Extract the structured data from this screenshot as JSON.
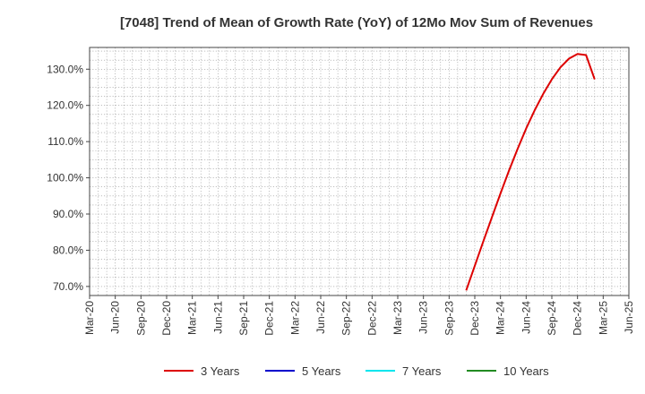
{
  "chart_data": {
    "type": "line",
    "title": "[7048]  Trend of Mean of Growth Rate (YoY) of 12Mo Mov Sum of Revenues",
    "xlabel": "",
    "ylabel": "",
    "ylim": [
      67.5,
      136.0
    ],
    "y_ticks": [
      70.0,
      80.0,
      90.0,
      100.0,
      110.0,
      120.0,
      130.0
    ],
    "y_tick_labels": [
      "70.0%",
      "80.0%",
      "90.0%",
      "100.0%",
      "110.0%",
      "120.0%",
      "130.0%"
    ],
    "x_tick_labels": [
      "Mar-20",
      "Jun-20",
      "Sep-20",
      "Dec-20",
      "Mar-21",
      "Jun-21",
      "Sep-21",
      "Dec-21",
      "Mar-22",
      "Jun-22",
      "Sep-22",
      "Dec-22",
      "Mar-23",
      "Jun-23",
      "Sep-23",
      "Dec-23",
      "Mar-24",
      "Jun-24",
      "Sep-24",
      "Dec-24",
      "Mar-25",
      "Jun-25"
    ],
    "x_start": "Mar-20",
    "x_end": "Jun-25",
    "grid": true,
    "legend_position": "bottom",
    "series": [
      {
        "name": "3 Years",
        "color": "#dd0000",
        "x": [
          "Nov-23",
          "Dec-23",
          "Jan-24",
          "Feb-24",
          "Mar-24",
          "Apr-24",
          "May-24",
          "Jun-24",
          "Jul-24",
          "Aug-24",
          "Sep-24",
          "Oct-24",
          "Nov-24",
          "Dec-24",
          "Jan-25",
          "Feb-25",
          "Mar-25"
        ],
        "values": [
          68.9,
          75.7,
          82.5,
          89.1,
          95.7,
          102.0,
          108.0,
          113.6,
          118.7,
          123.2,
          127.2,
          130.5,
          132.9,
          134.2,
          133.9,
          127.2,
          null
        ]
      },
      {
        "name": "5 Years",
        "color": "#0000cc",
        "x": [],
        "values": []
      },
      {
        "name": "7 Years",
        "color": "#00e5ee",
        "x": [],
        "values": []
      },
      {
        "name": "10 Years",
        "color": "#228b22",
        "x": [],
        "values": []
      }
    ]
  }
}
